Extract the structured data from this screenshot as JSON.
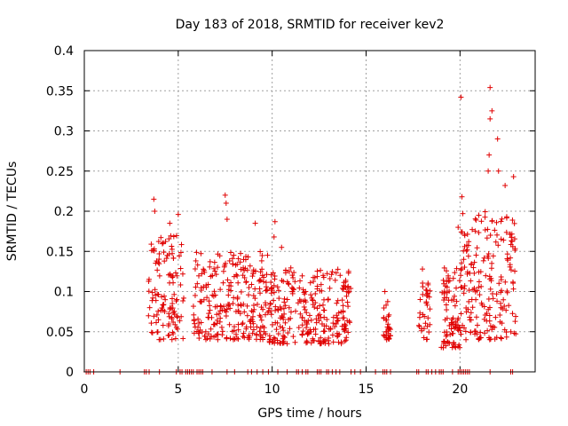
{
  "chart_data": {
    "type": "scatter",
    "title": "Day 183 of 2018, SRMTID for receiver kev2",
    "xlabel": "GPS time / hours",
    "ylabel": "SRMTID / TECUs",
    "xlim": [
      0,
      24
    ],
    "ylim": [
      0,
      0.4
    ],
    "grid": true,
    "marker": "+",
    "color": "#e00000",
    "xticks": [
      {
        "value": 0,
        "label": "0"
      },
      {
        "value": 5,
        "label": "5"
      },
      {
        "value": 10,
        "label": "10"
      },
      {
        "value": 15,
        "label": "15"
      },
      {
        "value": 20,
        "label": "20"
      }
    ],
    "yticks": [
      {
        "value": 0,
        "label": "0"
      },
      {
        "value": 0.05,
        "label": "0.05"
      },
      {
        "value": 0.1,
        "label": "0.1"
      },
      {
        "value": 0.15,
        "label": "0.15"
      },
      {
        "value": 0.2,
        "label": "0.2"
      },
      {
        "value": 0.25,
        "label": "0.25"
      },
      {
        "value": 0.3,
        "label": "0.3"
      },
      {
        "value": 0.35,
        "label": "0.35"
      },
      {
        "value": 0.4,
        "label": "0.4"
      }
    ],
    "clusters": [
      {
        "x_start": 3.4,
        "x_end": 5.3,
        "y_low": 0.04,
        "y_high": 0.17,
        "count": 120,
        "peaks": [
          [
            3.7,
            0.215
          ],
          [
            3.75,
            0.2
          ],
          [
            5.0,
            0.196
          ],
          [
            4.55,
            0.185
          ]
        ]
      },
      {
        "x_start": 5.8,
        "x_end": 9.8,
        "y_low": 0.04,
        "y_high": 0.15,
        "count": 260,
        "peaks": [
          [
            7.5,
            0.22
          ],
          [
            7.55,
            0.21
          ],
          [
            7.6,
            0.19
          ],
          [
            9.1,
            0.185
          ]
        ]
      },
      {
        "x_start": 9.8,
        "x_end": 14.2,
        "y_low": 0.035,
        "y_high": 0.13,
        "count": 280,
        "peaks": [
          [
            10.15,
            0.187
          ],
          [
            10.1,
            0.168
          ],
          [
            10.5,
            0.155
          ]
        ]
      },
      {
        "x_start": 15.9,
        "x_end": 16.3,
        "y_low": 0.04,
        "y_high": 0.09,
        "count": 30,
        "peaks": [
          [
            16.0,
            0.1
          ]
        ]
      },
      {
        "x_start": 17.8,
        "x_end": 18.4,
        "y_low": 0.04,
        "y_high": 0.12,
        "count": 35,
        "peaks": [
          [
            18.0,
            0.128
          ]
        ]
      },
      {
        "x_start": 19.0,
        "x_end": 20.0,
        "y_low": 0.03,
        "y_high": 0.13,
        "count": 80,
        "peaks": [
          [
            19.9,
            0.18
          ],
          [
            20.1,
            0.218
          ],
          [
            20.05,
            0.342
          ]
        ]
      },
      {
        "x_start": 20.0,
        "x_end": 23.0,
        "y_low": 0.04,
        "y_high": 0.2,
        "count": 200,
        "peaks": [
          [
            21.6,
            0.354
          ],
          [
            21.7,
            0.325
          ],
          [
            21.6,
            0.315
          ],
          [
            22.0,
            0.29
          ],
          [
            21.55,
            0.27
          ],
          [
            21.5,
            0.25
          ],
          [
            22.05,
            0.25
          ],
          [
            22.85,
            0.243
          ],
          [
            22.4,
            0.232
          ],
          [
            21.0,
            0.195
          ]
        ]
      }
    ],
    "zero_markers_x": [
      0.1,
      0.2,
      0.3,
      0.5,
      1.9,
      3.2,
      3.3,
      3.45,
      4.0,
      4.9,
      5.1,
      5.2,
      5.4,
      5.5,
      5.6,
      5.7,
      5.8,
      6.0,
      6.1,
      6.2,
      6.3,
      6.8,
      7.6,
      8.0,
      8.7,
      8.9,
      9.2,
      9.5,
      9.8,
      10.3,
      10.8,
      11.3,
      11.4,
      11.6,
      11.8,
      11.9,
      12.4,
      12.5,
      12.6,
      12.9,
      13.0,
      13.2,
      13.4,
      13.6,
      14.2,
      14.4,
      14.7,
      15.5,
      15.9,
      16.0,
      16.1,
      16.3,
      17.7,
      17.8,
      18.2,
      18.3,
      18.5,
      18.7,
      18.9,
      19.0,
      19.1,
      19.6,
      19.9,
      20.0,
      20.1,
      20.2,
      20.3,
      20.4,
      20.5,
      21.6,
      22.7,
      22.8
    ]
  }
}
